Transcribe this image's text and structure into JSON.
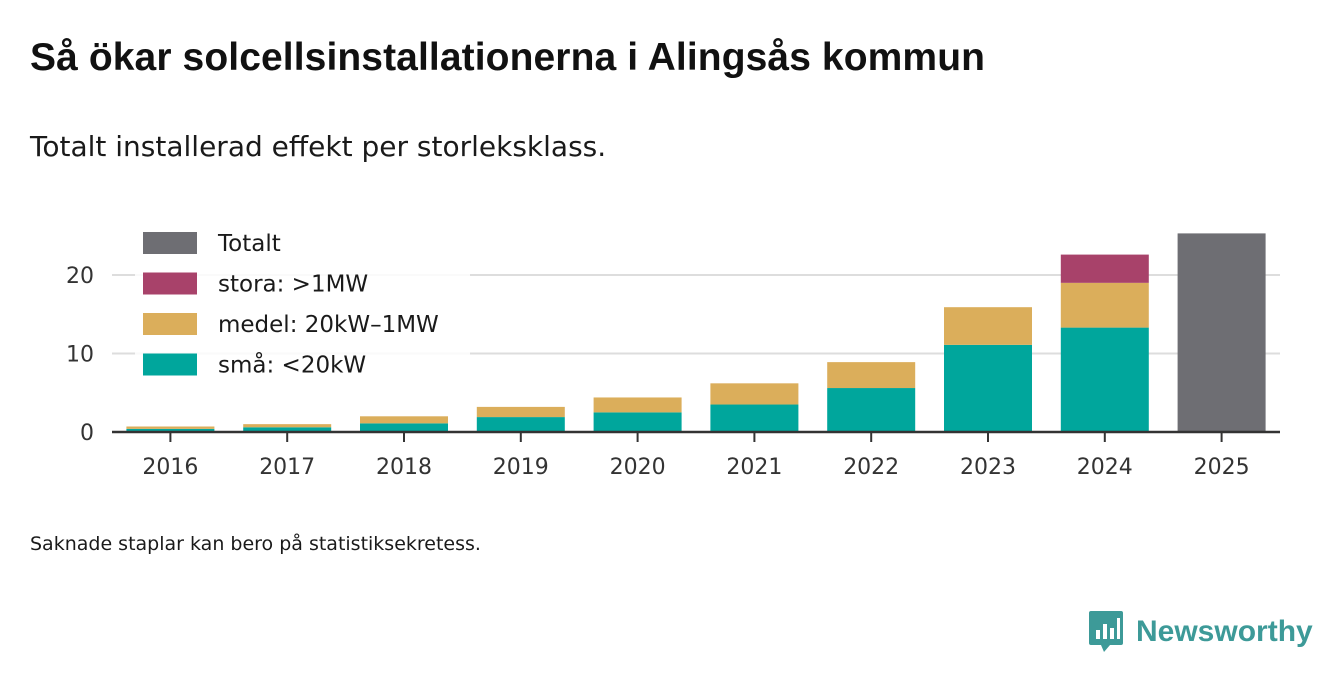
{
  "header": {
    "title": "Så ökar solcellsinstallationerna i Alingsås kommun",
    "subtitle": "Totalt installerad effekt per storleksklass."
  },
  "footer": {
    "note": "Saknade staplar kan bero på statistiksekretess.",
    "brand": "Newsworthy"
  },
  "colors": {
    "totalt": "#6e6e73",
    "stora": "#a8426a",
    "medel": "#dbae5b",
    "sma": "#00a69c",
    "brand": "#3d9a98",
    "grid": "#dddddd",
    "axis": "#333333"
  },
  "chart_data": {
    "type": "bar",
    "stacked": true,
    "categories": [
      "2016",
      "2017",
      "2018",
      "2019",
      "2020",
      "2021",
      "2022",
      "2023",
      "2024",
      "2025"
    ],
    "series": [
      {
        "name": "små: <20kW",
        "key": "sma",
        "values": [
          0.4,
          0.6,
          1.1,
          1.9,
          2.5,
          3.5,
          5.6,
          11.1,
          13.3,
          null
        ]
      },
      {
        "name": "medel: 20kW–1MW",
        "key": "medel",
        "values": [
          0.3,
          0.4,
          0.9,
          1.3,
          1.9,
          2.7,
          3.3,
          4.8,
          5.7,
          null
        ]
      },
      {
        "name": "stora: >1MW",
        "key": "stora",
        "values": [
          null,
          null,
          null,
          null,
          null,
          null,
          null,
          null,
          3.6,
          null
        ]
      },
      {
        "name": "Totalt",
        "key": "totalt",
        "values": [
          null,
          null,
          null,
          null,
          null,
          null,
          null,
          null,
          null,
          25.3
        ]
      }
    ],
    "legend": [
      {
        "label": "Totalt",
        "key": "totalt"
      },
      {
        "label": "stora: >1MW",
        "key": "stora"
      },
      {
        "label": "medel: 20kW–1MW",
        "key": "medel"
      },
      {
        "label": "små: <20kW",
        "key": "sma"
      }
    ],
    "yticks": [
      0,
      10,
      20
    ],
    "ylim": [
      0,
      26
    ],
    "title": "Så ökar solcellsinstallationerna i Alingsås kommun",
    "xlabel": "",
    "ylabel": "",
    "legend_position": "top-left",
    "grid": true
  }
}
